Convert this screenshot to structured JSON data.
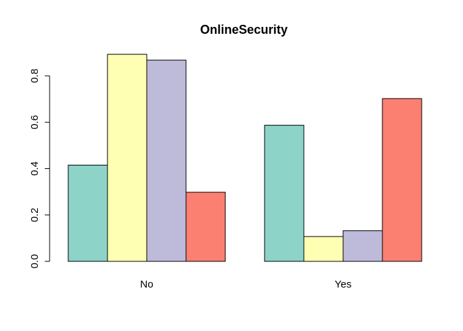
{
  "chart_data": {
    "type": "bar",
    "title": "OnlineSecurity",
    "xlabel": "",
    "ylabel": "",
    "categories": [
      "No",
      "Yes"
    ],
    "ylim": [
      0,
      0.8
    ],
    "yticks": [
      "0.0",
      "0.2",
      "0.4",
      "0.6",
      "0.8"
    ],
    "grid": false,
    "legend": "none",
    "series": [
      {
        "color": "#8DD3C7",
        "values": [
          0.415,
          0.587
        ]
      },
      {
        "color": "#FFFFB3",
        "values": [
          0.893,
          0.107
        ]
      },
      {
        "color": "#BEBADA",
        "values": [
          0.868,
          0.132
        ]
      },
      {
        "color": "#FB8072",
        "values": [
          0.298,
          0.702
        ]
      }
    ]
  }
}
